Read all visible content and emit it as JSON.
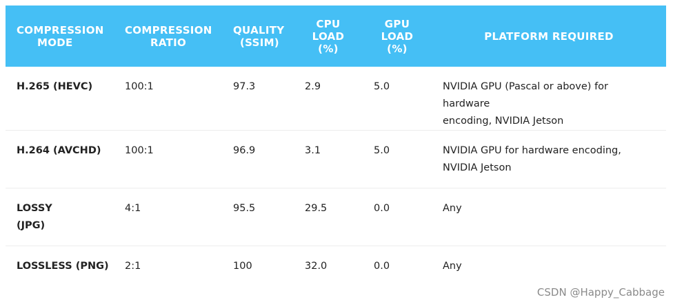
{
  "table": {
    "headers": [
      [
        "COMPRESSION",
        "MODE"
      ],
      [
        "COMPRESSION",
        "RATIO"
      ],
      [
        "QUALITY",
        "(SSIM)"
      ],
      [
        "CPU",
        "LOAD",
        "(%)"
      ],
      [
        "GPU",
        "LOAD",
        "(%)"
      ],
      [
        "PLATFORM REQUIRED"
      ]
    ],
    "rows": [
      {
        "mode": [
          "H.265 (HEVC)"
        ],
        "ratio": "100:1",
        "quality": "97.3",
        "cpu": "2.9",
        "gpu": "5.0",
        "platform": [
          "NVIDIA GPU (Pascal or above) for hardware",
          "encoding, NVIDIA Jetson"
        ]
      },
      {
        "mode": [
          "H.264 (AVCHD)"
        ],
        "ratio": "100:1",
        "quality": "96.9",
        "cpu": "3.1",
        "gpu": "5.0",
        "platform": [
          "NVIDIA GPU for hardware encoding,",
          "NVIDIA Jetson"
        ]
      },
      {
        "mode": [
          "LOSSY",
          "(JPG)"
        ],
        "ratio": "4:1",
        "quality": "95.5",
        "cpu": "29.5",
        "gpu": "0.0",
        "platform": [
          "Any"
        ]
      },
      {
        "mode": [
          "LOSSLESS (PNG)"
        ],
        "ratio": "2:1",
        "quality": "100",
        "cpu": "32.0",
        "gpu": "0.0",
        "platform": [
          "Any"
        ]
      }
    ]
  },
  "watermark": "CSDN @Happy_Cabbage",
  "colors": {
    "header_bg": "#45bff5",
    "header_text": "#ffffff"
  }
}
